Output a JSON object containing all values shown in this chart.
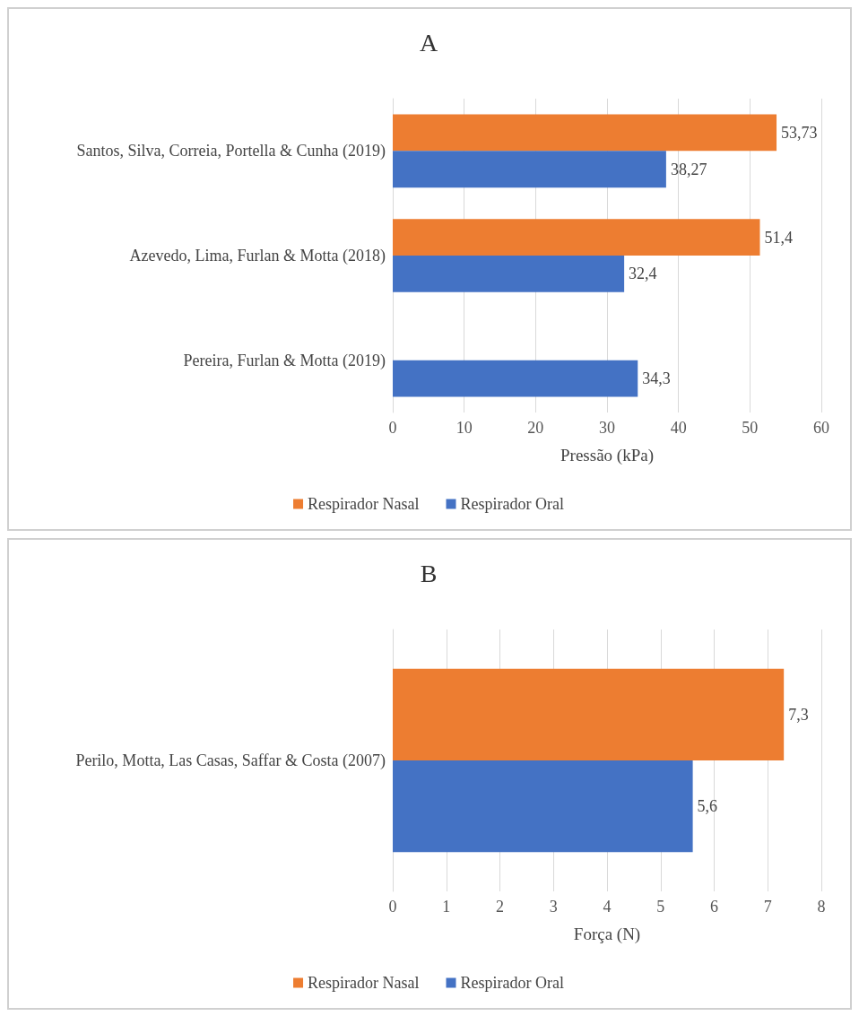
{
  "chart_data": [
    {
      "type": "bar",
      "orientation": "horizontal",
      "title": "A",
      "xlabel": "Pressão (kPa)",
      "categories": [
        "Santos, Silva, Correia, Portella & Cunha (2019)",
        "Azevedo, Lima, Furlan & Motta (2018)",
        "Pereira, Furlan & Motta (2019)"
      ],
      "series": [
        {
          "name": "Respirador Nasal",
          "color": "#ed7d31",
          "values": [
            53.73,
            51.4,
            null
          ],
          "value_labels": [
            "53,73",
            "51,4",
            null
          ]
        },
        {
          "name": "Respirador Oral",
          "color": "#4472c4",
          "values": [
            38.27,
            32.4,
            34.3
          ],
          "value_labels": [
            "38,27",
            "32,4",
            "34,3"
          ]
        }
      ],
      "xlim": [
        0,
        60
      ],
      "xticks": [
        0,
        10,
        20,
        30,
        40,
        50,
        60
      ],
      "grid": "x",
      "legend": "bottom"
    },
    {
      "type": "bar",
      "orientation": "horizontal",
      "title": "B",
      "xlabel": "Força (N)",
      "categories": [
        "Perilo, Motta, Las Casas, Saffar & Costa (2007)"
      ],
      "series": [
        {
          "name": "Respirador Nasal",
          "color": "#ed7d31",
          "values": [
            7.3
          ],
          "value_labels": [
            "7,3"
          ]
        },
        {
          "name": "Respirador Oral",
          "color": "#4472c4",
          "values": [
            5.6
          ],
          "value_labels": [
            "5,6"
          ]
        }
      ],
      "xlim": [
        0,
        8
      ],
      "xticks": [
        0,
        1,
        2,
        3,
        4,
        5,
        6,
        7,
        8
      ],
      "grid": "x",
      "legend": "bottom"
    }
  ]
}
